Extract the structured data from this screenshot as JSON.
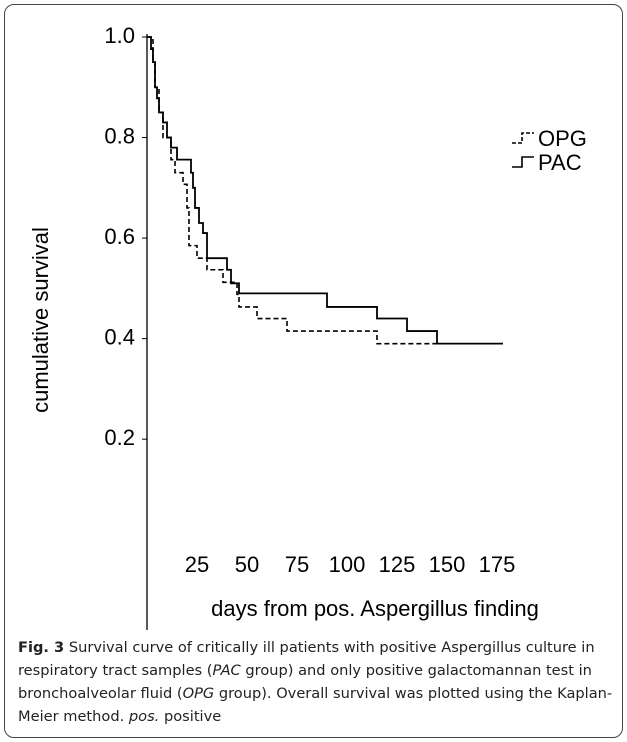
{
  "chart_data": {
    "type": "step",
    "ylabel": "cumulative survival",
    "xlabel": "days from pos. Aspergillus finding",
    "xlim": [
      0,
      180
    ],
    "ylim": [
      -0.295,
      1.0
    ],
    "xticks": [
      25,
      50,
      75,
      100,
      125,
      150,
      175
    ],
    "yticks": [
      0.2,
      0.4,
      0.6,
      0.8,
      {
        "value": 1,
        "label": "1.0"
      }
    ],
    "legend": "top-right",
    "series": [
      {
        "name": "OPG",
        "color": "#000000",
        "dash": true,
        "x": [
          0,
          3,
          4,
          6,
          8,
          12,
          14,
          18,
          20,
          21,
          25,
          30,
          38,
          45,
          46,
          55,
          70,
          115,
          145
        ],
        "values": [
          1.0,
          0.95,
          0.9,
          0.85,
          0.8,
          0.756,
          0.73,
          0.707,
          0.66,
          0.585,
          0.56,
          0.537,
          0.512,
          0.488,
          0.463,
          0.44,
          0.415,
          0.39,
          0.39
        ]
      },
      {
        "name": "PAC",
        "color": "#000000",
        "dash": false,
        "x": [
          0,
          2,
          3,
          4,
          5,
          6,
          8,
          10,
          12,
          15,
          22,
          23,
          24,
          26,
          28,
          30,
          40,
          42,
          46,
          90,
          115,
          130,
          145,
          178
        ],
        "values": [
          1.0,
          0.976,
          0.95,
          0.9,
          0.878,
          0.85,
          0.83,
          0.8,
          0.78,
          0.756,
          0.73,
          0.7,
          0.66,
          0.63,
          0.61,
          0.56,
          0.537,
          0.51,
          0.49,
          0.463,
          0.44,
          0.415,
          0.39,
          0.39
        ]
      }
    ]
  },
  "caption": {
    "label": "Fig. 3",
    "parts": [
      " Survival curve of critically ill patients with positive Aspergillus culture in respiratory tract samples (",
      "PAC",
      " group) and only positive galactomannan test in bronchoalveolar fluid (",
      "OPG",
      " group). Overall survival was plotted using the Kaplan-Meier method. ",
      "pos.",
      " positive"
    ]
  }
}
